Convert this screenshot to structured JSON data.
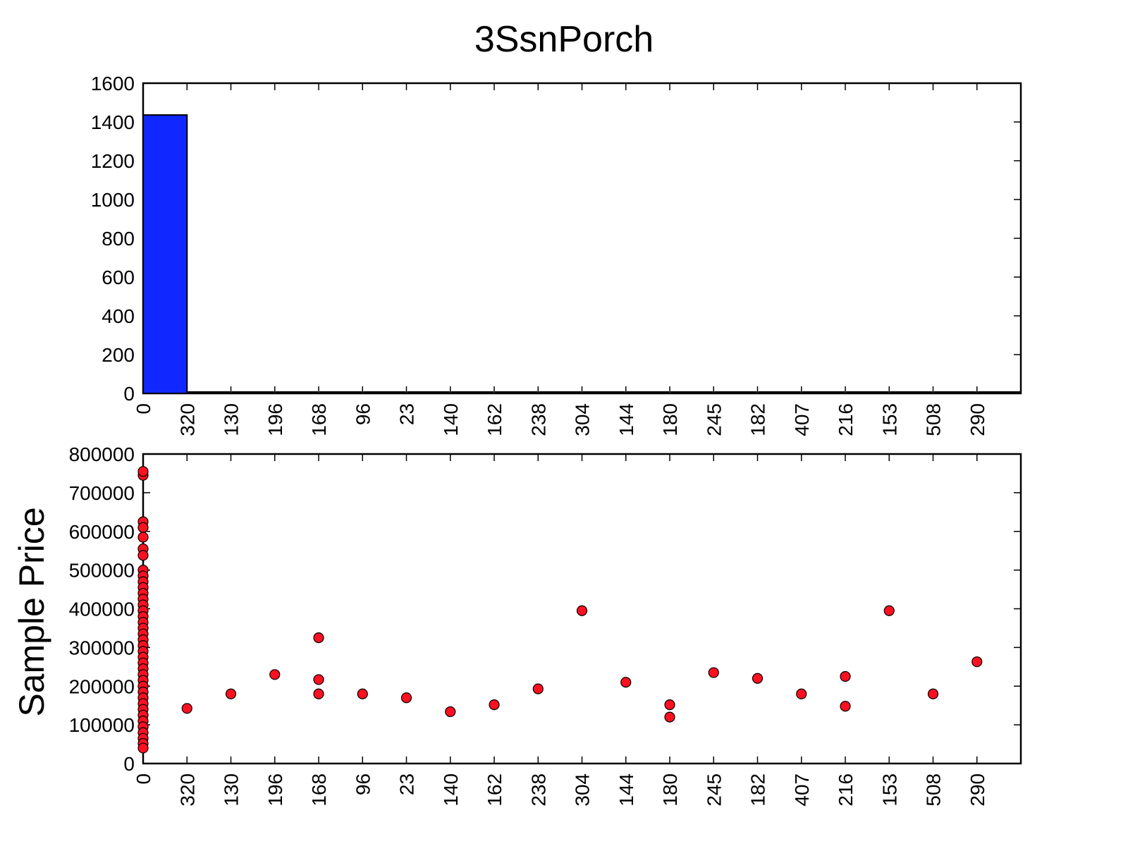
{
  "title": "3SsnPorch",
  "chart_data": [
    {
      "type": "bar",
      "categories": [
        "0",
        "320",
        "130",
        "196",
        "168",
        "96",
        "23",
        "140",
        "162",
        "238",
        "304",
        "144",
        "180",
        "245",
        "182",
        "407",
        "216",
        "153",
        "508",
        "290"
      ],
      "values": [
        1436,
        1,
        1,
        1,
        3,
        1,
        1,
        1,
        1,
        1,
        1,
        1,
        2,
        1,
        1,
        1,
        2,
        1,
        1,
        1
      ],
      "ylim": [
        0,
        1600
      ],
      "yticks": [
        "0",
        "200",
        "400",
        "600",
        "800",
        "1000",
        "1200",
        "1400",
        "1600"
      ],
      "xlabel": "",
      "ylabel": "",
      "grid": false,
      "colors": {
        "bar": "#1028ff",
        "bar_edge": "#000000"
      }
    },
    {
      "type": "scatter",
      "categories": [
        "0",
        "320",
        "130",
        "196",
        "168",
        "96",
        "23",
        "140",
        "162",
        "238",
        "304",
        "144",
        "180",
        "245",
        "182",
        "407",
        "216",
        "153",
        "508",
        "290"
      ],
      "ylim": [
        0,
        800000
      ],
      "yticks": [
        "0",
        "100000",
        "200000",
        "300000",
        "400000",
        "500000",
        "600000",
        "700000",
        "800000"
      ],
      "xlabel": "",
      "ylabel": "Sample Price",
      "grid": false,
      "colors": {
        "point": "#ff1020",
        "point_edge": "#000000"
      },
      "points": [
        [
          "0",
          745000
        ],
        [
          "0",
          755000
        ],
        [
          "0",
          625000
        ],
        [
          "0",
          610000
        ],
        [
          "0",
          585000
        ],
        [
          "0",
          555000
        ],
        [
          "0",
          538000
        ],
        [
          "0",
          500000
        ],
        [
          "0",
          485000
        ],
        [
          "0",
          470000
        ],
        [
          "0",
          455000
        ],
        [
          "0",
          440000
        ],
        [
          "0",
          425000
        ],
        [
          "0",
          410000
        ],
        [
          "0",
          395000
        ],
        [
          "0",
          380000
        ],
        [
          "0",
          365000
        ],
        [
          "0",
          350000
        ],
        [
          "0",
          335000
        ],
        [
          "0",
          320000
        ],
        [
          "0",
          305000
        ],
        [
          "0",
          290000
        ],
        [
          "0",
          275000
        ],
        [
          "0",
          260000
        ],
        [
          "0",
          245000
        ],
        [
          "0",
          230000
        ],
        [
          "0",
          215000
        ],
        [
          "0",
          200000
        ],
        [
          "0",
          185000
        ],
        [
          "0",
          170000
        ],
        [
          "0",
          155000
        ],
        [
          "0",
          140000
        ],
        [
          "0",
          125000
        ],
        [
          "0",
          110000
        ],
        [
          "0",
          95000
        ],
        [
          "0",
          80000
        ],
        [
          "0",
          65000
        ],
        [
          "0",
          52000
        ],
        [
          "0",
          40000
        ],
        [
          "320",
          142500
        ],
        [
          "130",
          180000
        ],
        [
          "196",
          230000
        ],
        [
          "168",
          325000
        ],
        [
          "168",
          217000
        ],
        [
          "168",
          180000
        ],
        [
          "96",
          180000
        ],
        [
          "23",
          170000
        ],
        [
          "140",
          134000
        ],
        [
          "162",
          152000
        ],
        [
          "238",
          193000
        ],
        [
          "304",
          395000
        ],
        [
          "144",
          210000
        ],
        [
          "180",
          152000
        ],
        [
          "180",
          120000
        ],
        [
          "245",
          235000
        ],
        [
          "182",
          220000
        ],
        [
          "407",
          180000
        ],
        [
          "216",
          225000
        ],
        [
          "216",
          148000
        ],
        [
          "153",
          395000
        ],
        [
          "508",
          180000
        ],
        [
          "290",
          263000
        ]
      ]
    }
  ]
}
